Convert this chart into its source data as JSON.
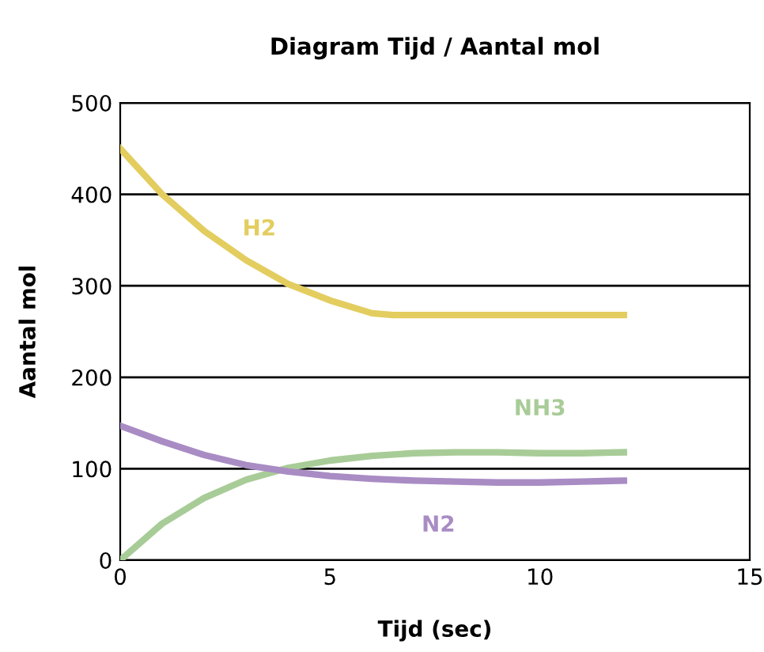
{
  "chart_data": {
    "type": "line",
    "title": "Diagram Tijd / Aantal mol",
    "xlabel": "Tijd (sec)",
    "ylabel": "Aantal mol",
    "xlim": [
      0,
      15
    ],
    "xticks": [
      0,
      5,
      10,
      15
    ],
    "ylim": [
      0,
      500
    ],
    "yticks": [
      0,
      100,
      200,
      300,
      400,
      500
    ],
    "grid": "y",
    "legend": false,
    "marker": "none",
    "line_style": "solid",
    "series": [
      {
        "name": "H2",
        "color": "#e3cd5f",
        "x": [
          0,
          1,
          2,
          3,
          4,
          5,
          6,
          6.5,
          12
        ],
        "values": [
          450,
          400,
          360,
          328,
          302,
          284,
          270,
          268,
          268
        ]
      },
      {
        "name": "NH3",
        "color": "#a8cc97",
        "x": [
          0,
          1,
          2,
          3,
          4,
          5,
          6,
          7,
          8,
          9,
          10,
          11,
          12
        ],
        "values": [
          0,
          40,
          68,
          88,
          101,
          109,
          114,
          117,
          118,
          118,
          117,
          117,
          118
        ]
      },
      {
        "name": "N2",
        "color": "#a98cc4",
        "x": [
          0,
          1,
          2,
          3,
          4,
          5,
          6,
          7,
          8,
          9,
          10,
          11,
          12
        ],
        "values": [
          147,
          130,
          115,
          104,
          97,
          92,
          89,
          87,
          86,
          85,
          85,
          86,
          87
        ]
      }
    ]
  }
}
